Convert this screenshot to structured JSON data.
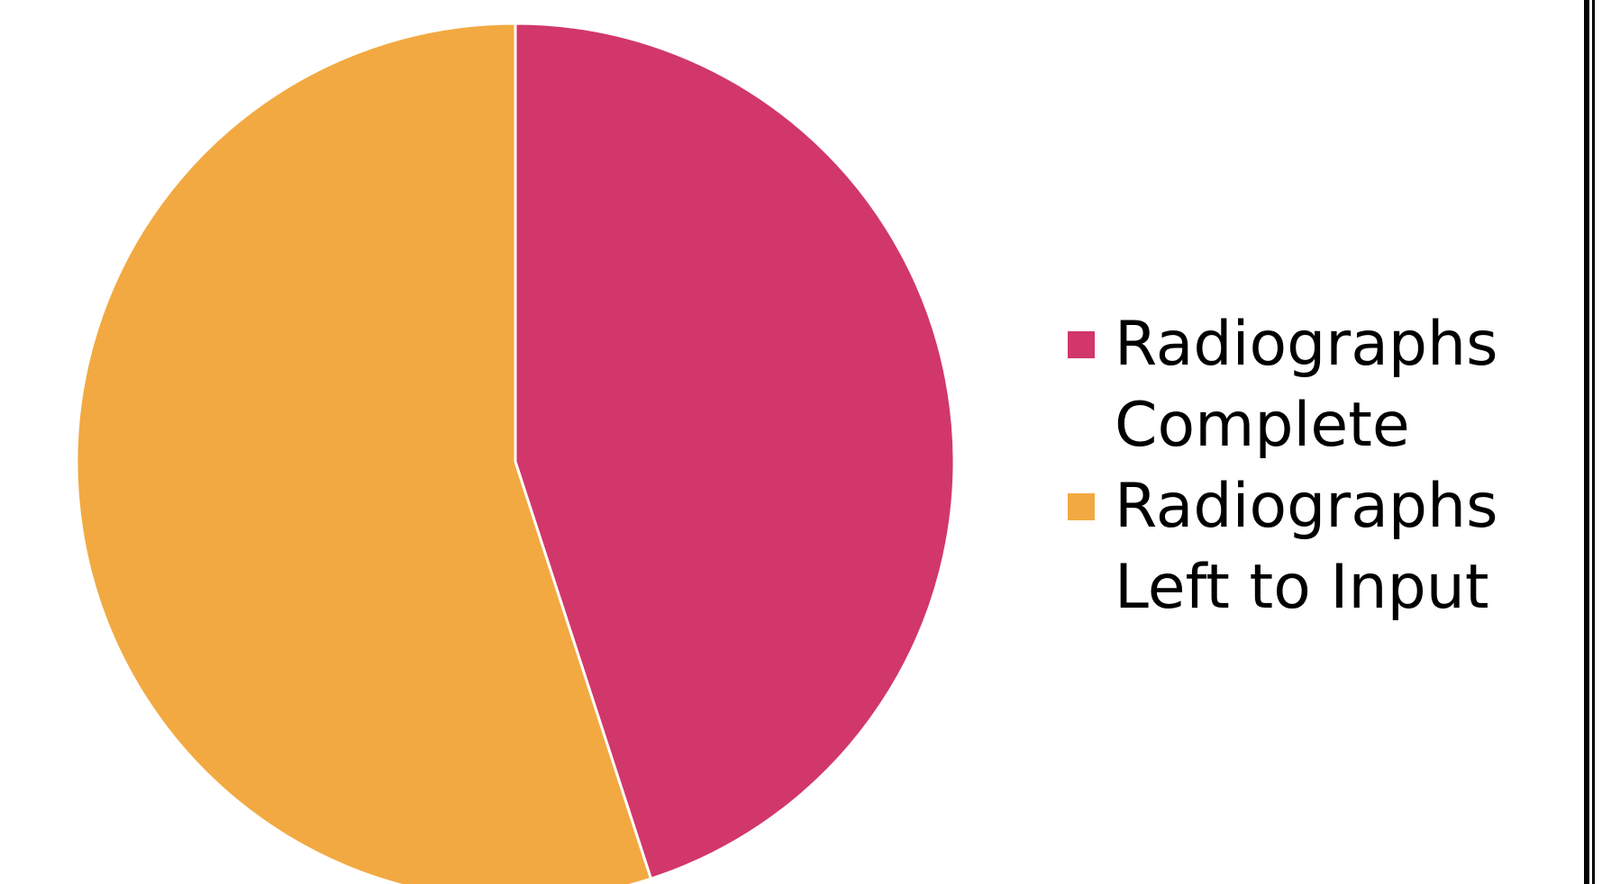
{
  "chart_data": {
    "type": "pie",
    "title": "",
    "slices": [
      {
        "label": "Radiographs Complete",
        "value": 45,
        "color": "#D1376A"
      },
      {
        "label": "Radiographs Left to Input",
        "value": 55,
        "color": "#F2A941"
      }
    ],
    "start_angle_deg": 0,
    "direction": "clockwise",
    "legend_position": "right"
  }
}
